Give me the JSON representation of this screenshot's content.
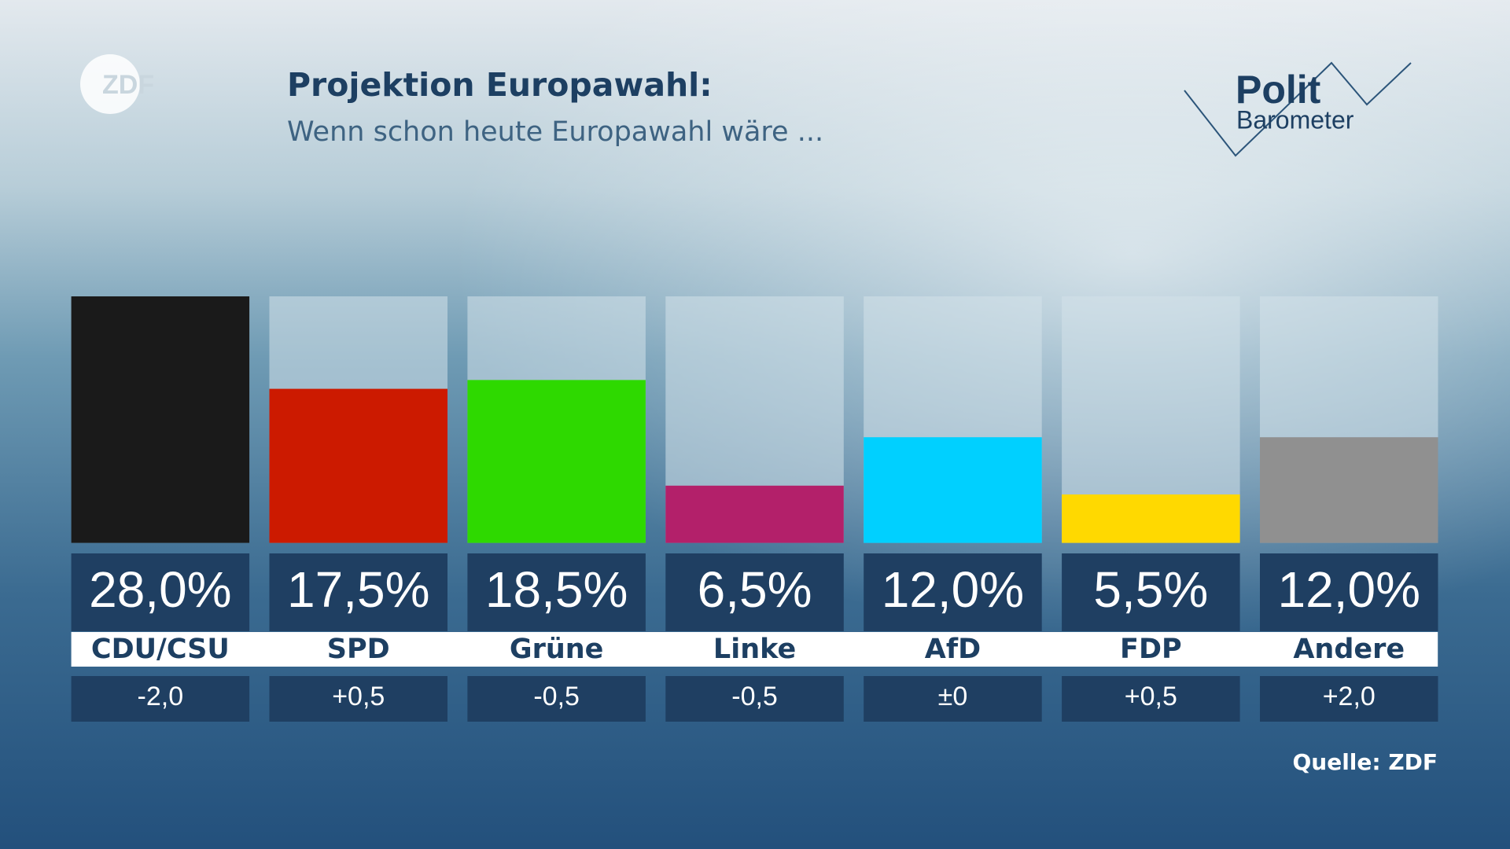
{
  "chart_data": {
    "type": "bar",
    "title": "Projektion Europawahl:",
    "subtitle": "Wenn schon heute Europawahl wäre ...",
    "logo": "ZDF",
    "brand": [
      "Polit",
      "Barometer"
    ],
    "source": "Quelle: ZDF",
    "categories": [
      "CDU/CSU",
      "SPD",
      "Grüne",
      "Linke",
      "AfD",
      "FDP",
      "Andere"
    ],
    "values": [
      28.0,
      17.5,
      18.5,
      6.5,
      12.0,
      5.5,
      12.0
    ],
    "value_labels": [
      "28,0%",
      "17,5%",
      "18,5%",
      "6,5%",
      "12,0%",
      "5,5%",
      "12,0%"
    ],
    "changes": [
      -2.0,
      0.5,
      -0.5,
      -0.5,
      0,
      0.5,
      2.0
    ],
    "change_labels": [
      "-2,0",
      "+0,5",
      "-0,5",
      "-0,5",
      "±0",
      "+0,5",
      "+2,0"
    ],
    "colors": [
      "#1a1a1a",
      "#cc1a00",
      "#2ed900",
      "#b3206a",
      "#00d0ff",
      "#ffd900",
      "#909090"
    ],
    "ylim": [
      0,
      28
    ]
  }
}
